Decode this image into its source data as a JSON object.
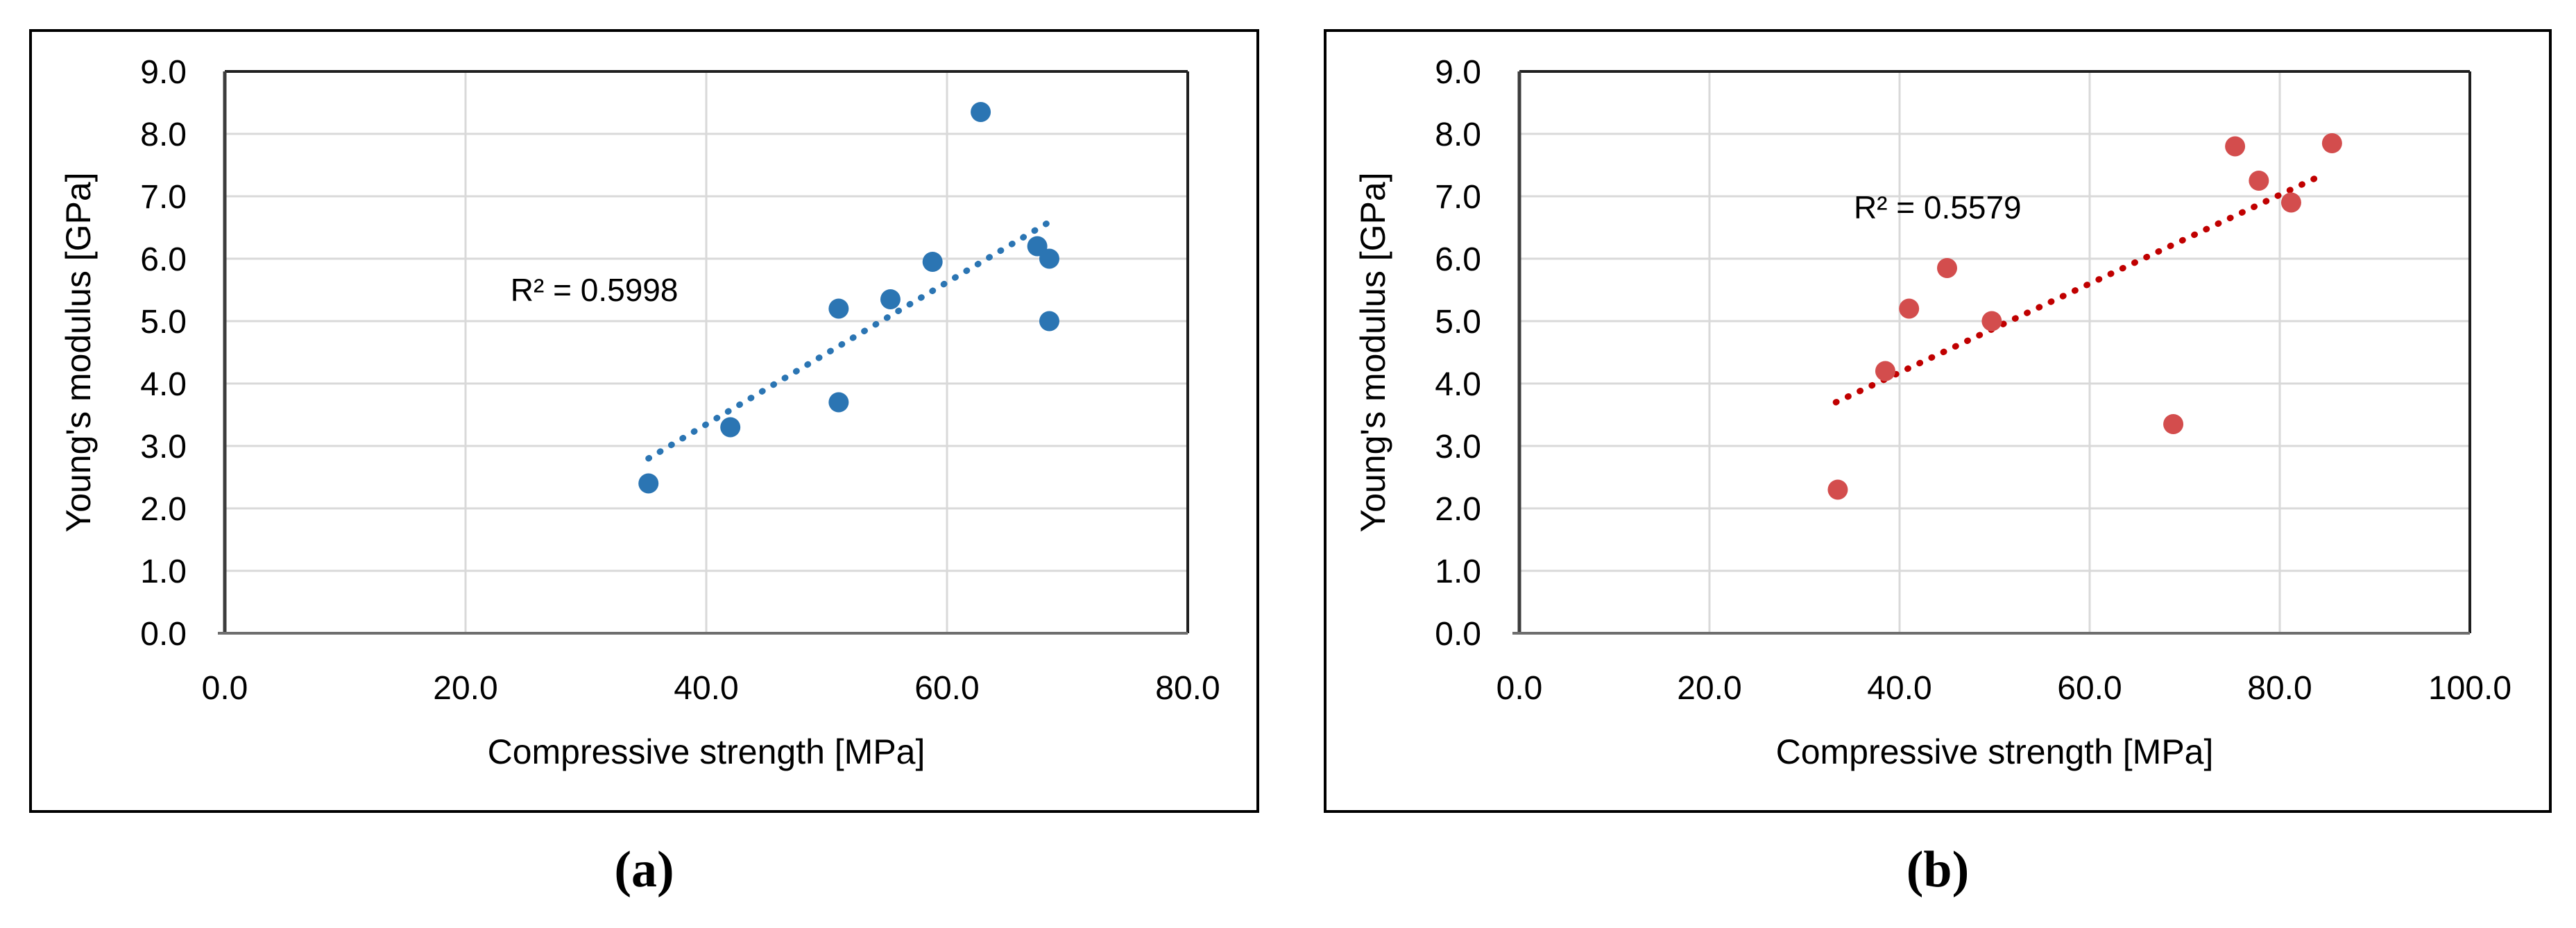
{
  "chart_data": [
    {
      "type": "scatter",
      "panel": "a",
      "caption": "(a)",
      "xlabel": "Compressive strength [MPa]",
      "ylabel": "Young's modulus [GPa]",
      "xlim": [
        0,
        80
      ],
      "ylim": [
        0,
        9
      ],
      "xticks": [
        "0.0",
        "20.0",
        "40.0",
        "60.0",
        "80.0"
      ],
      "yticks": [
        "0.0",
        "1.0",
        "2.0",
        "3.0",
        "4.0",
        "5.0",
        "6.0",
        "7.0",
        "8.0",
        "9.0"
      ],
      "grid": true,
      "points": [
        [
          35.2,
          2.4
        ],
        [
          42.0,
          3.3
        ],
        [
          51.0,
          3.7
        ],
        [
          51.0,
          5.2
        ],
        [
          55.3,
          5.35
        ],
        [
          58.8,
          5.95
        ],
        [
          62.8,
          8.35
        ],
        [
          67.5,
          6.2
        ],
        [
          68.5,
          6.0
        ],
        [
          68.5,
          5.0
        ]
      ],
      "trendline": {
        "style": "dotted",
        "x1": 35.2,
        "y1": 2.8,
        "x2": 68.6,
        "y2": 6.6,
        "r2": 0.5998
      },
      "r2_annotation": {
        "text": "R² = 0.5998",
        "x": 30.7,
        "y": 5.5
      },
      "colors": {
        "marker": "#2b75b3",
        "trend": "#2b75b3"
      }
    },
    {
      "type": "scatter",
      "panel": "b",
      "caption": "(b)",
      "xlabel": "Compressive strength [MPa]",
      "ylabel": "Young's modulus [GPa]",
      "xlim": [
        0,
        100
      ],
      "ylim": [
        0,
        9
      ],
      "xticks": [
        "0.0",
        "20.0",
        "40.0",
        "60.0",
        "80.0",
        "100.0"
      ],
      "yticks": [
        "0.0",
        "1.0",
        "2.0",
        "3.0",
        "4.0",
        "5.0",
        "6.0",
        "7.0",
        "8.0",
        "9.0"
      ],
      "grid": true,
      "points": [
        [
          33.5,
          2.3
        ],
        [
          38.5,
          4.2
        ],
        [
          41.0,
          5.2
        ],
        [
          45.0,
          5.85
        ],
        [
          49.7,
          5.0
        ],
        [
          68.8,
          3.35
        ],
        [
          75.3,
          7.8
        ],
        [
          77.8,
          7.25
        ],
        [
          81.2,
          6.9
        ],
        [
          85.5,
          7.85
        ]
      ],
      "trendline": {
        "style": "dotted",
        "x1": 33.3,
        "y1": 3.7,
        "x2": 84.6,
        "y2": 7.35,
        "r2": 0.5579
      },
      "r2_annotation": {
        "text": "R² = 0.5579",
        "x": 44.0,
        "y": 6.82
      },
      "colors": {
        "marker": "#d34d4d",
        "trend": "#c00000"
      }
    }
  ]
}
